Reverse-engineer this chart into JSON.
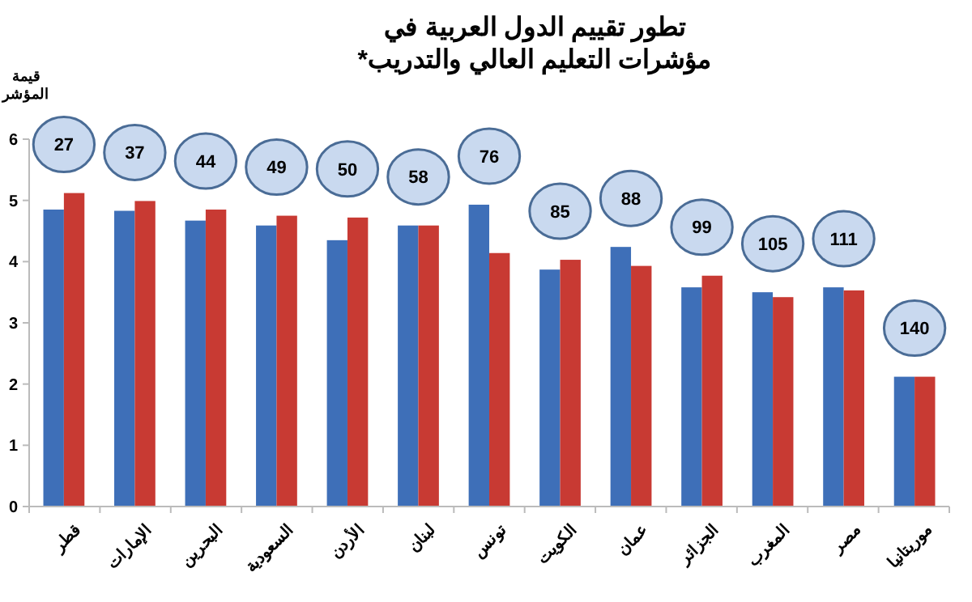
{
  "chart_data": {
    "type": "bar",
    "title": "تطور تقييم الدول العربية في مؤشرات التعليم العالي والتدريب*",
    "ylabel": "قيمة المؤشر",
    "categories": [
      "قطر",
      "الإمارات",
      "البحرين",
      "السعودية",
      "الأردن",
      "لبنان",
      "تونس",
      "الكويت",
      "عمان",
      "الجزائر",
      "المغرب",
      "مصر",
      "موريتانيا"
    ],
    "series": [
      {
        "color": "#3e6fb8",
        "values": [
          4.85,
          4.83,
          4.67,
          4.59,
          4.35,
          4.59,
          4.93,
          3.87,
          4.24,
          3.58,
          3.5,
          3.58,
          2.12
        ]
      },
      {
        "color": "#c83a33",
        "values": [
          5.12,
          4.99,
          4.85,
          4.75,
          4.72,
          4.59,
          4.14,
          4.03,
          3.93,
          3.77,
          3.42,
          3.53,
          2.12
        ]
      }
    ],
    "annotations": [
      {
        "text": "27",
        "x": "قطر"
      },
      {
        "text": "37",
        "x": "الإمارات"
      },
      {
        "text": "44",
        "x": "البحرين"
      },
      {
        "text": "49",
        "x": "السعودية"
      },
      {
        "text": "50",
        "x": "الأردن"
      },
      {
        "text": "58",
        "x": "لبنان"
      },
      {
        "text": "76",
        "x": "تونس"
      },
      {
        "text": "85",
        "x": "الكويت"
      },
      {
        "text": "88",
        "x": "عمان"
      },
      {
        "text": "99",
        "x": "الجزائر"
      },
      {
        "text": "105",
        "x": "المغرب"
      },
      {
        "text": "111",
        "x": "مصر"
      },
      {
        "text": "140",
        "x": "موريتانيا"
      }
    ],
    "ylim": [
      0,
      6
    ],
    "yticks": [
      0,
      1,
      2,
      3,
      4,
      5,
      6
    ],
    "grid": false
  }
}
